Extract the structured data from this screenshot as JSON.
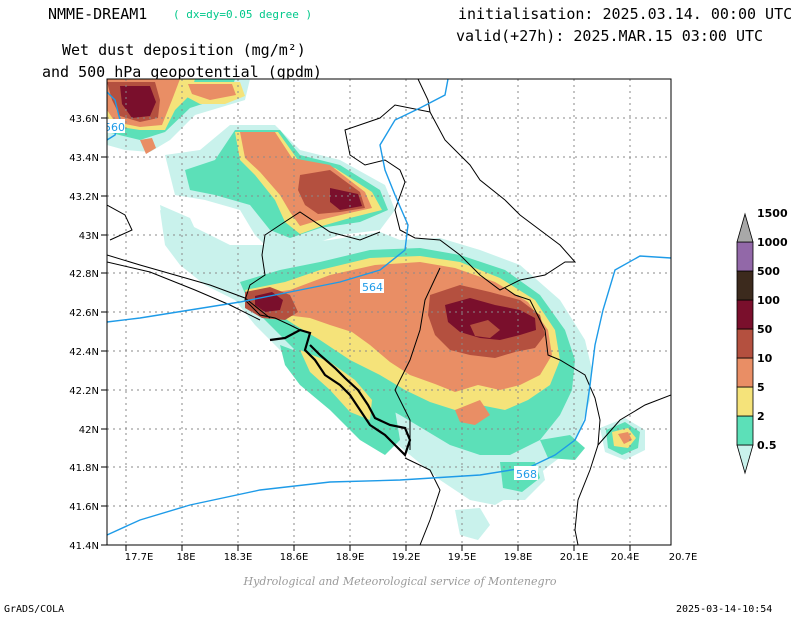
{
  "header": {
    "model_name": "NMME-DREAM1",
    "model_resolution": "( dx=dy=0.05 degree )",
    "initialisation": "initialisation: 2025.03.14. 00:00 UTC",
    "valid": "valid(+27h): 2025.MAR.15 03:00 UTC",
    "title_line1": "Wet dust deposition (mg/m²)",
    "title_line2": "and 500 hPa geopotential (gpdm)"
  },
  "map": {
    "lat_labels": [
      "43.6N",
      "43.4N",
      "43.2N",
      "43N",
      "42.8N",
      "42.6N",
      "42.4N",
      "42.2N",
      "42N",
      "41.8N",
      "41.6N",
      "41.4N"
    ],
    "lon_labels": [
      "17.7E",
      "18E",
      "18.3E",
      "18.6E",
      "18.9E",
      "19.2E",
      "19.5E",
      "19.8E",
      "20.1E",
      "20.4E",
      "20.7E"
    ],
    "contour_labels": [
      "560",
      "564",
      "568"
    ],
    "contour_color": "#1e9be8"
  },
  "colorbar": {
    "labels": [
      "0.5",
      "2",
      "5",
      "10",
      "50",
      "100",
      "500",
      "1000",
      "1500"
    ],
    "colors": [
      "#c9f2ec",
      "#5ce0b8",
      "#f5e37a",
      "#e98e65",
      "#b4503f",
      "#7a0f2c",
      "#3c2a1d",
      "#9268a8",
      "#a8a8a8"
    ]
  },
  "credit": "Hydrological and Meteorological service of Montenegro",
  "footer": {
    "left": "GrADS/COLA",
    "right": "2025-03-14-10:54"
  }
}
